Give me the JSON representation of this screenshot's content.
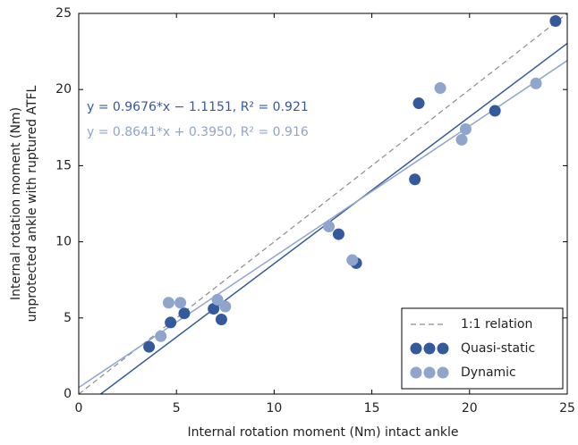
{
  "chart_data": {
    "type": "scatter",
    "x_label": "Internal rotation moment (Nm) intact ankle",
    "y_label": [
      "Internal rotation moment (Nm)",
      "unprotected ankle with ruptured ATFL"
    ],
    "xlim": [
      0,
      25
    ],
    "ylim": [
      0,
      25
    ],
    "xticks": [
      0,
      5,
      10,
      15,
      20,
      25
    ],
    "yticks": [
      0,
      5,
      10,
      15,
      20,
      25
    ],
    "grid": false,
    "legend": "lower right",
    "reference_line": {
      "name": "1:1 relation",
      "color": "#8c8c8c"
    },
    "series": [
      {
        "name": "Quasi-static",
        "color": "#355a9c",
        "trendline": true,
        "x": [
          3.6,
          4.7,
          5.4,
          6.9,
          7.3,
          13.3,
          14.2,
          17.2,
          17.4,
          21.3,
          24.4
        ],
        "values": [
          3.1,
          4.7,
          5.3,
          5.6,
          4.9,
          10.5,
          8.6,
          14.1,
          19.1,
          18.6,
          24.5
        ]
      },
      {
        "name": "Dynamic",
        "color": "#8fa5cc",
        "trendline": true,
        "x": [
          4.2,
          4.6,
          5.2,
          7.1,
          7.5,
          12.8,
          14.0,
          18.5,
          19.6,
          19.8,
          23.4
        ],
        "values": [
          3.8,
          6.0,
          6.0,
          6.2,
          5.75,
          11.0,
          8.8,
          20.1,
          16.7,
          17.4,
          20.4
        ]
      }
    ],
    "annotations": [
      "y = 0.9676*x − 1.1151, R² = 0.921",
      "y = 0.8641*x + 0.3950, R² = 0.916"
    ]
  }
}
